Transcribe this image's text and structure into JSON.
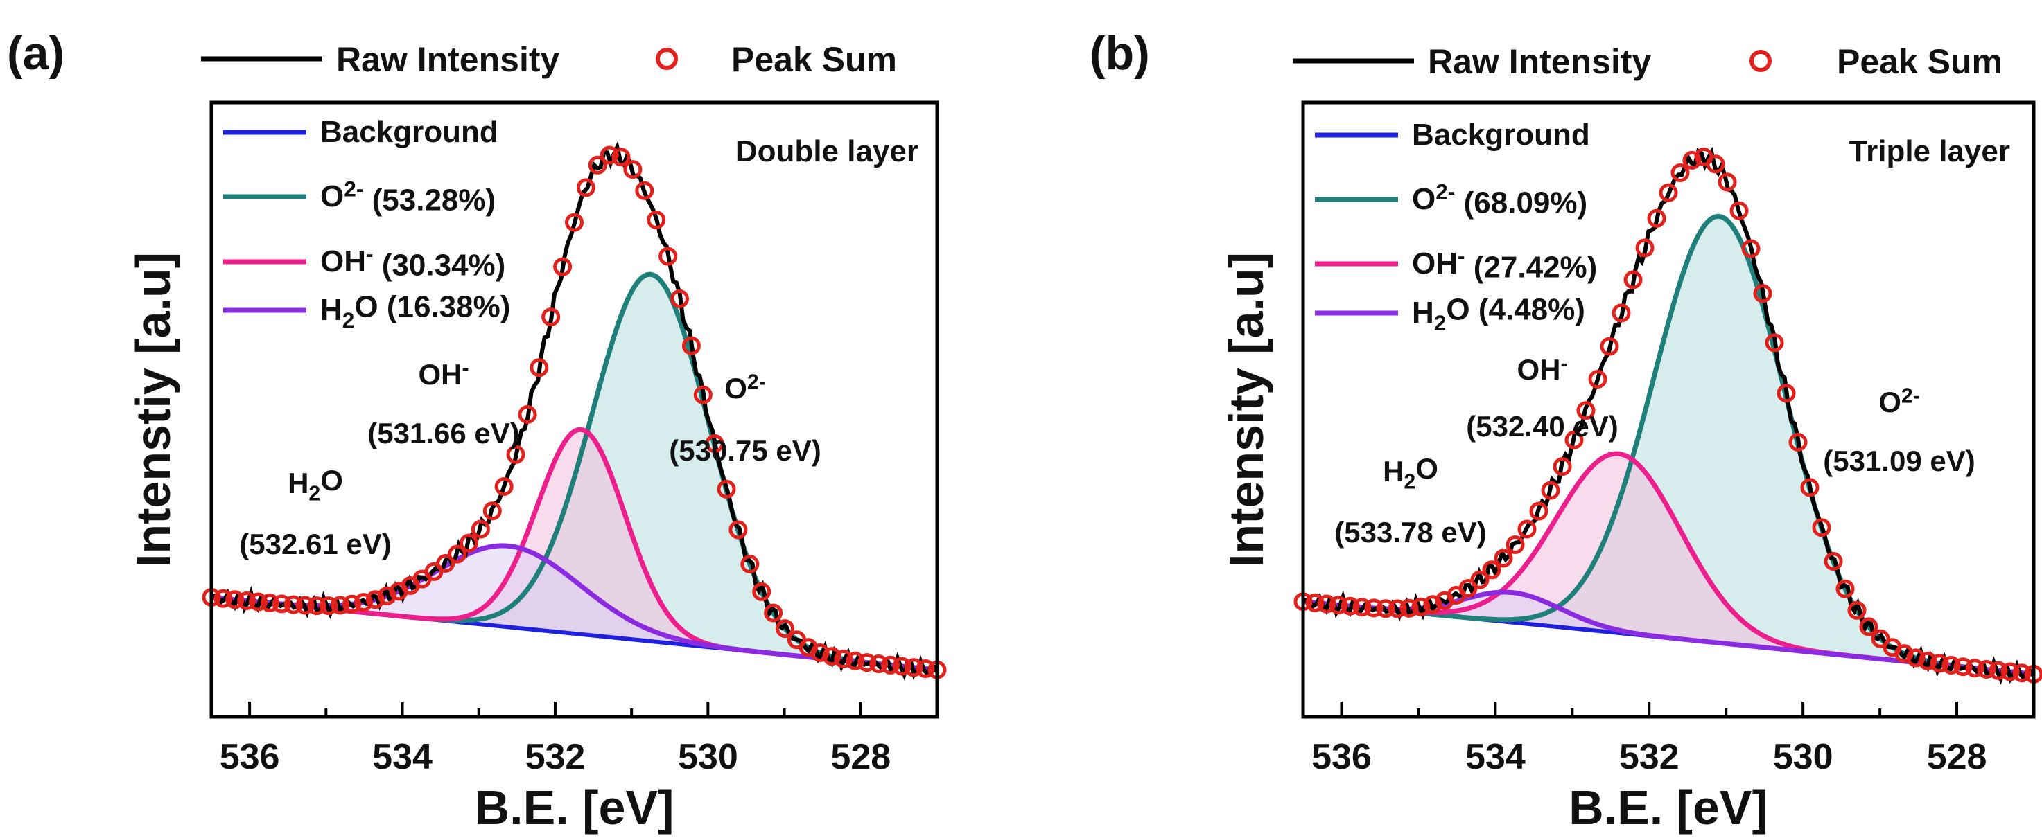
{
  "chart_data": [
    {
      "type": "line",
      "panel": "(a)",
      "title": "Double layer",
      "xlabel": "B.E. [eV]",
      "ylabel": "Intenstiy [a.u]",
      "xlim": [
        536.5,
        527.0
      ],
      "x_reversed": true,
      "xticks": [
        "536",
        "534",
        "532",
        "530",
        "528"
      ],
      "legend_top": [
        "Raw Intensity",
        "Peak Sum"
      ],
      "background": [
        {
          "x": 536.5,
          "y": 0.06
        },
        {
          "x": 527.0,
          "y": -0.11
        }
      ],
      "peaks": [
        {
          "name": "O2-",
          "label": "O",
          "sup": "2-",
          "percent": "(53.28%)",
          "center_text": "(530.75 eV)",
          "center": 530.75,
          "height": 0.86,
          "fwhm": 1.8,
          "color": "#1f7f7b",
          "fill": "#b6dcdc"
        },
        {
          "name": "OH-",
          "label": "OH",
          "sup": "-",
          "percent": "(30.34%)",
          "center_text": "(531.66 eV)",
          "center": 531.66,
          "height": 0.48,
          "fwhm": 1.35,
          "color": "#ec1f8c",
          "fill": "#f2c0de"
        },
        {
          "name": "H2O",
          "label": "H",
          "sub": "2",
          "label_rest": "O",
          "percent": "(16.38%)",
          "center_text": "(532.61 eV)",
          "center": 532.61,
          "height": 0.19,
          "fwhm": 2.2,
          "color": "#8a2be2",
          "fill": "#ddd0f4"
        }
      ],
      "legend_inside": [
        "Background",
        "O2-",
        "OH-",
        "H2O"
      ],
      "background_label": "Background",
      "colors": {
        "raw": "#000000",
        "peak_sum": "#e3211c",
        "background": "#1f1fe0"
      }
    },
    {
      "type": "line",
      "panel": "(b)",
      "title": "Triple layer",
      "xlabel": "B.E. [eV]",
      "ylabel": "Intensity [a.u]",
      "xlim": [
        536.5,
        527.0
      ],
      "x_reversed": true,
      "xticks": [
        "536",
        "534",
        "532",
        "530",
        "528"
      ],
      "legend_top": [
        "Raw Intensity",
        "Peak Sum"
      ],
      "background": [
        {
          "x": 536.5,
          "y": 0.05
        },
        {
          "x": 527.0,
          "y": -0.12
        }
      ],
      "peaks": [
        {
          "name": "O2-",
          "label": "O",
          "sup": "2-",
          "percent": "(68.09%)",
          "center_text": "(531.09 eV)",
          "center": 531.09,
          "height": 1.0,
          "fwhm": 2.0,
          "color": "#1f7f7b",
          "fill": "#b6dcdc"
        },
        {
          "name": "OH-",
          "label": "OH",
          "sup": "-",
          "percent": "(27.42%)",
          "center_text": "(532.40 eV)",
          "center": 532.4,
          "height": 0.42,
          "fwhm": 1.9,
          "color": "#ec1f8c",
          "fill": "#f2c0de"
        },
        {
          "name": "H2O",
          "label": "H",
          "sub": "2",
          "label_rest": "O",
          "percent": "(4.48%)",
          "center_text": "(533.78 eV)",
          "center": 533.78,
          "height": 0.07,
          "fwhm": 1.5,
          "color": "#8a2be2",
          "fill": "#ddd0f4"
        }
      ],
      "legend_inside": [
        "Background",
        "O2-",
        "OH-",
        "H2O"
      ],
      "background_label": "Background",
      "colors": {
        "raw": "#000000",
        "peak_sum": "#e3211c",
        "background": "#1f1fe0"
      }
    }
  ]
}
